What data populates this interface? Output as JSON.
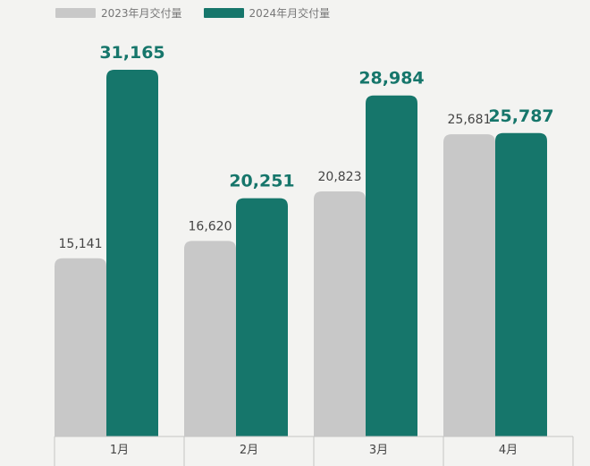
{
  "legend": {
    "items": [
      {
        "label": "2023年月交付量",
        "color": "#c8c8c8"
      },
      {
        "label": "2024年月交付量",
        "color": "#16766b"
      }
    ]
  },
  "colors": {
    "background": "#f3f3f1",
    "series_2023": "#c8c8c8",
    "series_2024": "#16766b",
    "label_2023": "#444444",
    "label_2024": "#16766b",
    "axis": "#c4c4c4",
    "tick_label": "#444444"
  },
  "chart_data": {
    "type": "bar",
    "categories": [
      "1月",
      "2月",
      "3月",
      "4月"
    ],
    "series": [
      {
        "name": "2023年月交付量",
        "values": [
          15141,
          16620,
          20823,
          25681
        ],
        "labels": [
          "15,141",
          "16,620",
          "20,823",
          "25,681"
        ]
      },
      {
        "name": "2024年月交付量",
        "values": [
          31165,
          20251,
          28984,
          25787
        ],
        "labels": [
          "31,165",
          "20,251",
          "28,984",
          "25,787"
        ]
      }
    ],
    "title": "",
    "xlabel": "",
    "ylabel": "",
    "ylim": [
      0,
      31165
    ],
    "grid": false,
    "legend_position": "top-left"
  }
}
